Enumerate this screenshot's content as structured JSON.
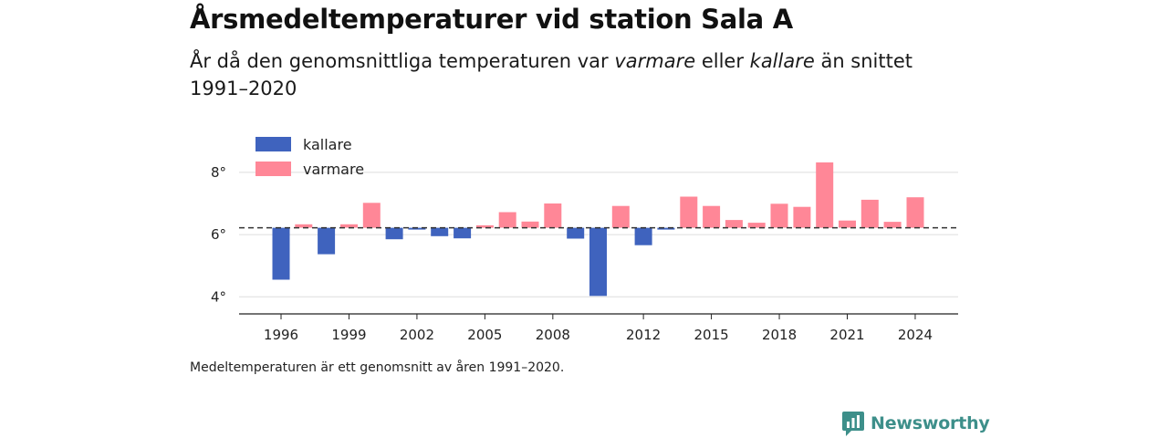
{
  "title": "Årsmedeltemperaturer vid station Sala A",
  "subtitle": {
    "part1": "År då den genomsnittliga temperaturen var ",
    "warm_word": "varmare",
    "part2": " eller ",
    "cold_word": "kallare",
    "part3": " än snittet 1991–2020"
  },
  "note": "Medeltemperaturen är ett genomsnitt av åren 1991–2020.",
  "brand": "Newsworthy",
  "colors": {
    "cold": "#3f63be",
    "warm": "#ff8797",
    "brand": "#3d8f8a"
  },
  "chart_data": {
    "type": "bar",
    "baseline": 6.22,
    "ylim": [
      3.45,
      9.2
    ],
    "yticks": [
      4,
      6,
      8
    ],
    "ytick_labels": [
      "4°",
      "6°",
      "8°"
    ],
    "xticks": [
      1996,
      1999,
      2002,
      2005,
      2008,
      2012,
      2015,
      2018,
      2021,
      2024
    ],
    "legend": [
      {
        "key": "cold",
        "label": "kallare"
      },
      {
        "key": "warm",
        "label": "varmare"
      }
    ],
    "years": [
      1996,
      1997,
      1998,
      1999,
      2000,
      2001,
      2002,
      2003,
      2004,
      2005,
      2006,
      2007,
      2008,
      2009,
      2010,
      2011,
      2012,
      2013,
      2014,
      2015,
      2016,
      2017,
      2018,
      2019,
      2020,
      2021,
      2022,
      2023,
      2024
    ],
    "values": [
      4.55,
      6.33,
      5.37,
      6.33,
      7.02,
      5.85,
      6.18,
      5.95,
      5.88,
      6.3,
      6.72,
      6.42,
      7.0,
      5.87,
      4.03,
      6.92,
      5.66,
      6.2,
      7.22,
      6.92,
      6.47,
      6.38,
      6.99,
      6.89,
      8.32,
      6.45,
      7.12,
      6.41,
      7.2
    ]
  }
}
